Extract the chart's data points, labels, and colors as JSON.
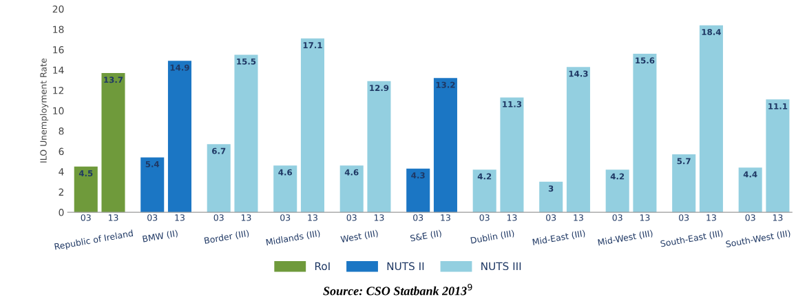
{
  "chart_data": {
    "type": "bar",
    "ylabel": "ILO Unemployment Rate",
    "categories": [
      "03",
      "13",
      "03",
      "13",
      "03",
      "13",
      "03",
      "13",
      "03",
      "13",
      "03",
      "13",
      "03",
      "13",
      "03",
      "13",
      "03",
      "13",
      "03",
      "13",
      "03",
      "13"
    ],
    "series": [
      {
        "name": "RoI",
        "color": "#6f9a3b",
        "values": [
          4.5,
          13.7,
          null,
          null,
          null,
          null,
          null,
          null,
          null,
          null,
          null,
          null,
          null,
          null,
          null,
          null,
          null,
          null,
          null,
          null,
          null,
          null
        ]
      },
      {
        "name": "NUTS II",
        "color": "#1b76c4",
        "values": [
          null,
          null,
          5.4,
          14.9,
          null,
          null,
          null,
          null,
          null,
          null,
          4.3,
          13.2,
          null,
          null,
          null,
          null,
          null,
          null,
          null,
          null,
          null,
          null
        ]
      },
      {
        "name": "NUTS III",
        "color": "#93cfe0",
        "values": [
          null,
          null,
          null,
          null,
          6.7,
          15.5,
          4.6,
          17.1,
          4.6,
          12.9,
          null,
          null,
          4.2,
          11.3,
          3,
          14.3,
          4.2,
          15.6,
          5.7,
          18.4,
          4.4,
          11.1
        ]
      }
    ],
    "stacked": true,
    "data_labels": true,
    "ylim": [
      0,
      20
    ],
    "yticks": [
      0,
      2,
      4,
      6,
      8,
      10,
      12,
      14,
      16,
      18,
      20
    ],
    "grid": false,
    "legend": "bottom",
    "annotations": [
      "Republic of Ireland",
      "BMW (II)",
      "Border (III)",
      "Midlands (III)",
      "West (III)",
      "S&E (II)",
      "Dublin (III)",
      "Mid-East (III)",
      "Mid-West (III)",
      "South-East (III)",
      "South-West (III)",
      "Source: CSO Statbank 2013$^{9}$"
    ]
  }
}
